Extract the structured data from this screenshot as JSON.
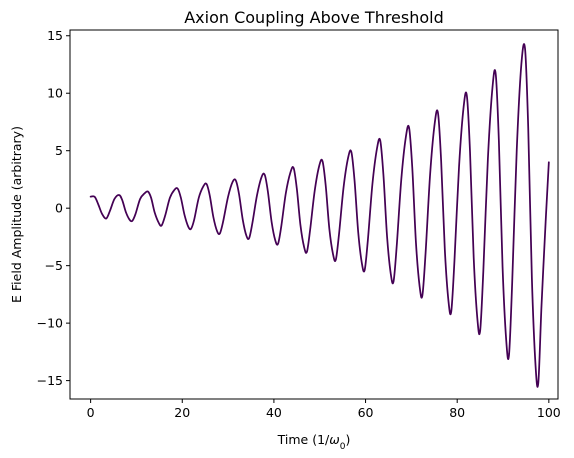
{
  "chart_data": {
    "type": "line",
    "title": "Axion Coupling Above Threshold",
    "xlabel_main": "Time (1/",
    "xlabel_symbol": "ω",
    "xlabel_sub": "0",
    "xlabel_end": ")",
    "ylabel": "E Field Amplitude (arbitrary)",
    "xlim": [
      -4.5,
      102
    ],
    "ylim": [
      -16.6,
      15.5
    ],
    "xticks": [
      0,
      20,
      40,
      60,
      80,
      100
    ],
    "yticks": [
      -15,
      -10,
      -5,
      0,
      5,
      10,
      15
    ],
    "xtick_labels": [
      "0",
      "20",
      "40",
      "60",
      "80",
      "100"
    ],
    "ytick_labels": [
      "−15",
      "−10",
      "−5",
      "0",
      "5",
      "10",
      "15"
    ],
    "grid": false,
    "line_color": "#440154",
    "series": [
      {
        "points": [
          [
            0,
            1.0
          ],
          [
            0.9,
            0.98
          ],
          [
            1.7,
            0.3
          ],
          [
            2.5,
            -0.5
          ],
          [
            3.4,
            -0.9
          ],
          [
            4.2,
            -0.25
          ],
          [
            5.2,
            0.8
          ],
          [
            6.2,
            1.15
          ],
          [
            6.9,
            0.7
          ],
          [
            7.7,
            -0.35
          ],
          [
            8.5,
            -1.0
          ],
          [
            9.1,
            -1.1
          ],
          [
            9.8,
            -0.5
          ],
          [
            10.8,
            0.8
          ],
          [
            11.8,
            1.3
          ],
          [
            12.5,
            1.45
          ],
          [
            13.2,
            0.9
          ],
          [
            14.0,
            -0.4
          ],
          [
            14.9,
            -1.3
          ],
          [
            15.5,
            -1.5
          ],
          [
            16.3,
            -0.6
          ],
          [
            17.3,
            0.9
          ],
          [
            18.3,
            1.6
          ],
          [
            19.0,
            1.7
          ],
          [
            19.7,
            0.9
          ],
          [
            20.5,
            -0.6
          ],
          [
            21.3,
            -1.6
          ],
          [
            21.9,
            -1.8
          ],
          [
            22.6,
            -1.0
          ],
          [
            23.6,
            0.9
          ],
          [
            24.6,
            1.9
          ],
          [
            25.3,
            2.1
          ],
          [
            26.0,
            1.1
          ],
          [
            26.8,
            -0.8
          ],
          [
            27.6,
            -2.0
          ],
          [
            28.2,
            -2.2
          ],
          [
            28.9,
            -1.2
          ],
          [
            30.0,
            1.0
          ],
          [
            31.0,
            2.3
          ],
          [
            31.7,
            2.4
          ],
          [
            32.4,
            1.2
          ],
          [
            33.2,
            -1.0
          ],
          [
            34.0,
            -2.4
          ],
          [
            34.6,
            -2.6
          ],
          [
            35.3,
            -1.3
          ],
          [
            36.3,
            1.1
          ],
          [
            37.3,
            2.7
          ],
          [
            38.0,
            2.9
          ],
          [
            38.7,
            1.4
          ],
          [
            39.5,
            -1.2
          ],
          [
            40.3,
            -2.8
          ],
          [
            40.9,
            -3.1
          ],
          [
            41.6,
            -1.6
          ],
          [
            42.6,
            1.3
          ],
          [
            43.6,
            3.1
          ],
          [
            44.3,
            3.5
          ],
          [
            45.0,
            1.7
          ],
          [
            45.8,
            -1.5
          ],
          [
            46.6,
            -3.4
          ],
          [
            47.2,
            -3.8
          ],
          [
            47.9,
            -1.9
          ],
          [
            48.9,
            1.5
          ],
          [
            49.9,
            3.7
          ],
          [
            50.6,
            4.1
          ],
          [
            51.3,
            2.0
          ],
          [
            52.1,
            -1.8
          ],
          [
            52.9,
            -4.0
          ],
          [
            53.5,
            -4.5
          ],
          [
            54.2,
            -2.3
          ],
          [
            55.2,
            1.8
          ],
          [
            56.2,
            4.4
          ],
          [
            56.9,
            4.9
          ],
          [
            57.6,
            2.4
          ],
          [
            58.4,
            -2.1
          ],
          [
            59.2,
            -4.8
          ],
          [
            59.8,
            -5.4
          ],
          [
            60.5,
            -2.8
          ],
          [
            61.5,
            2.1
          ],
          [
            62.5,
            5.2
          ],
          [
            63.2,
            5.9
          ],
          [
            63.9,
            2.9
          ],
          [
            64.7,
            -2.5
          ],
          [
            65.5,
            -5.7
          ],
          [
            66.1,
            -6.4
          ],
          [
            66.8,
            -3.3
          ],
          [
            67.8,
            2.5
          ],
          [
            68.8,
            6.2
          ],
          [
            69.5,
            7.0
          ],
          [
            70.2,
            3.5
          ],
          [
            71.0,
            -3.0
          ],
          [
            71.8,
            -6.8
          ],
          [
            72.4,
            -7.6
          ],
          [
            73.1,
            -3.9
          ],
          [
            74.1,
            3.0
          ],
          [
            75.1,
            7.4
          ],
          [
            75.8,
            8.3
          ],
          [
            76.5,
            4.1
          ],
          [
            77.3,
            -3.6
          ],
          [
            78.1,
            -8.1
          ],
          [
            78.7,
            -9.0
          ],
          [
            79.4,
            -4.6
          ],
          [
            80.4,
            3.6
          ],
          [
            81.4,
            8.8
          ],
          [
            82.1,
            9.8
          ],
          [
            82.8,
            4.9
          ],
          [
            83.6,
            -4.3
          ],
          [
            84.4,
            -9.6
          ],
          [
            85.0,
            -10.7
          ],
          [
            85.7,
            -5.5
          ],
          [
            86.7,
            4.3
          ],
          [
            87.7,
            10.5
          ],
          [
            88.4,
            11.7
          ],
          [
            89.1,
            5.8
          ],
          [
            89.9,
            -5.1
          ],
          [
            90.7,
            -11.5
          ],
          [
            91.3,
            -12.8
          ],
          [
            92.0,
            -6.5
          ],
          [
            93.0,
            5.1
          ],
          [
            94.0,
            12.5
          ],
          [
            94.8,
            13.9
          ],
          [
            95.5,
            7.0
          ],
          [
            96.3,
            -6.1
          ],
          [
            97.1,
            -13.7
          ],
          [
            97.7,
            -15.2
          ],
          [
            98.4,
            -8.5
          ],
          [
            99.3,
            -1.2
          ],
          [
            100,
            4.0
          ]
        ]
      }
    ]
  }
}
